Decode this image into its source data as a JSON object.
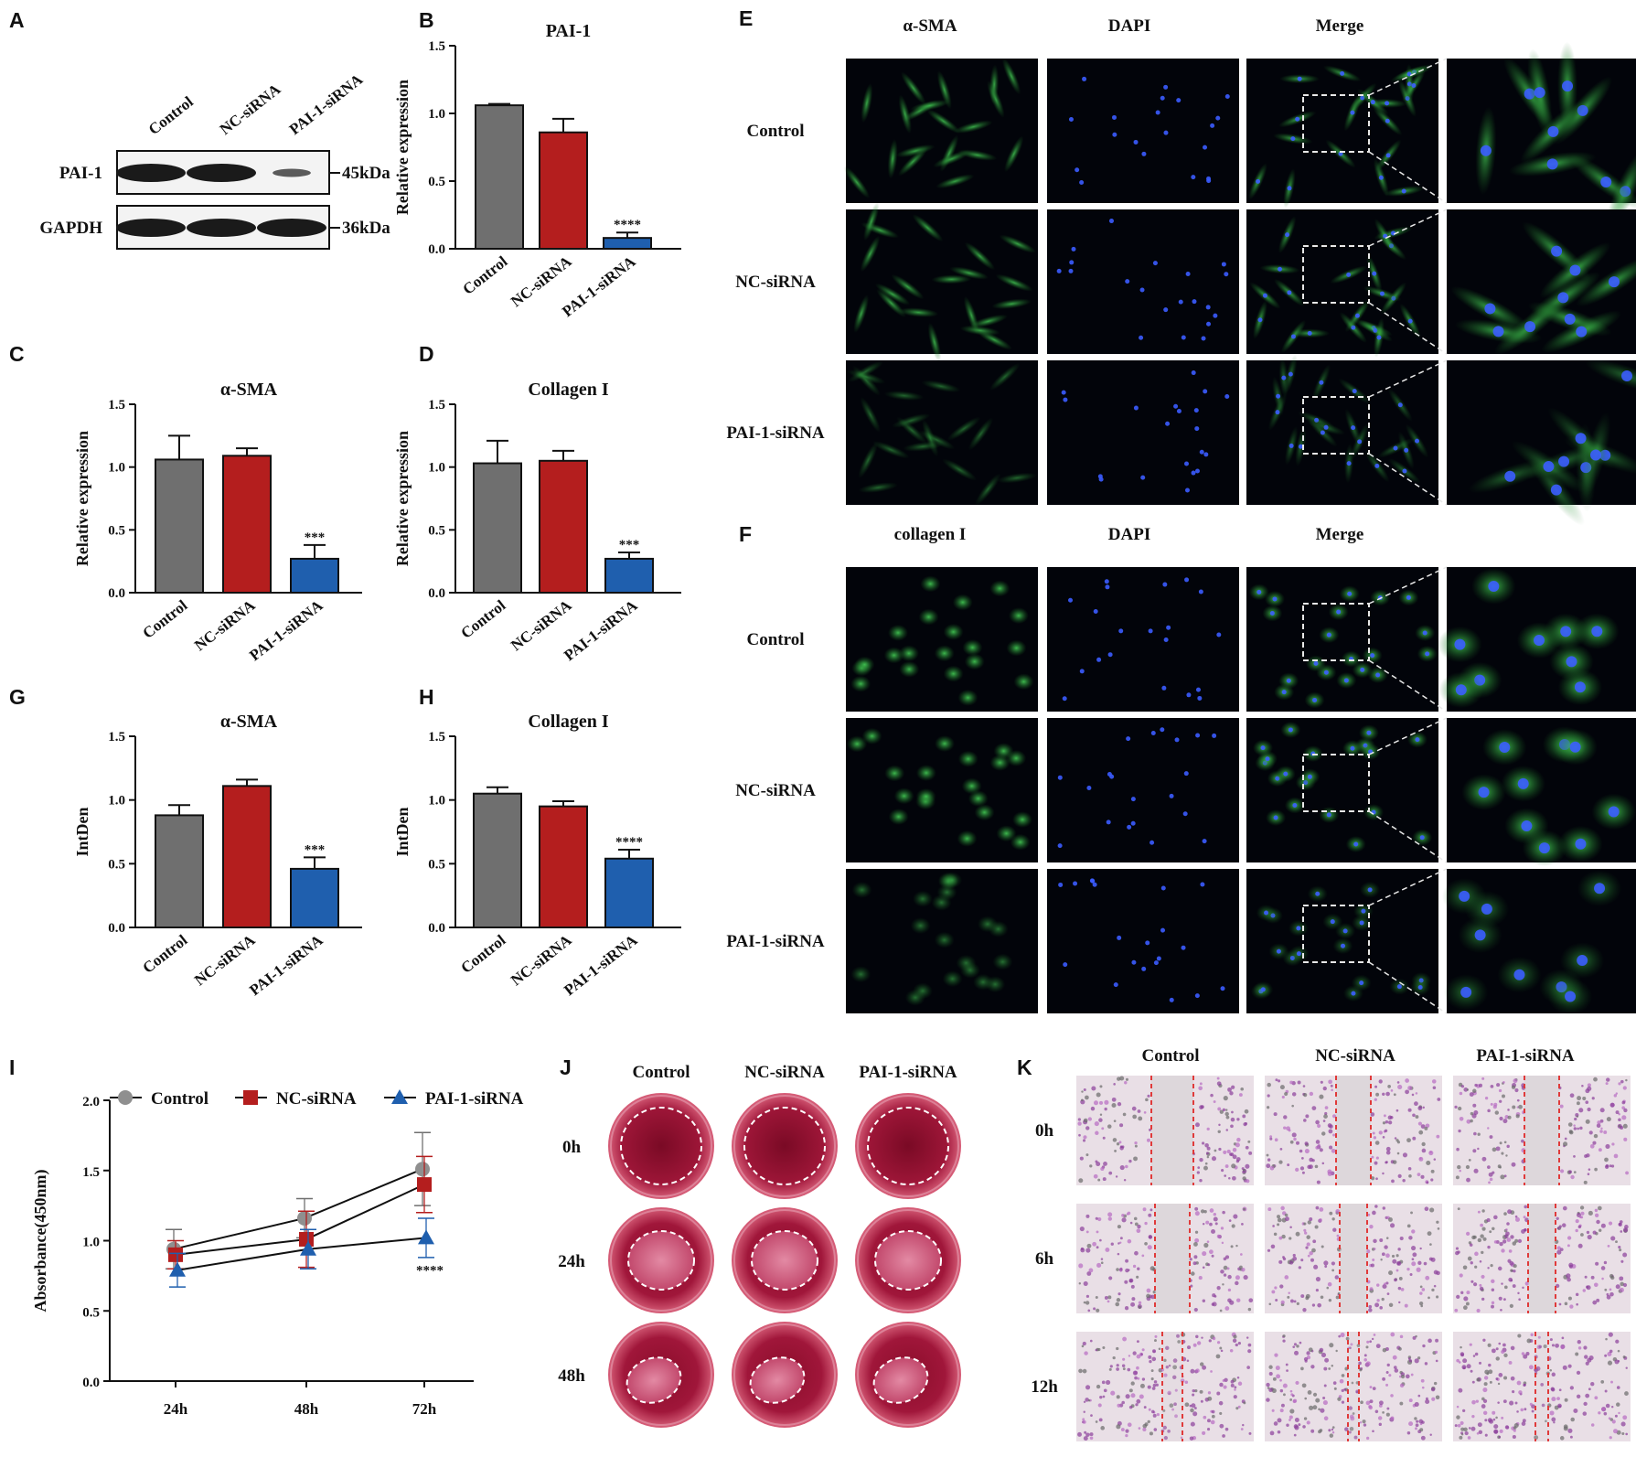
{
  "panel_letters": [
    "A",
    "B",
    "C",
    "D",
    "E",
    "F",
    "G",
    "H",
    "I",
    "J",
    "K"
  ],
  "colors": {
    "control": "#6f6f6f",
    "nc": "#b41e1e",
    "pai": "#1f5fae"
  },
  "blot": {
    "columns": [
      "Control",
      "NC-siRNA",
      "PAI-1-siRNA"
    ],
    "rows": [
      {
        "label": "PAI-1",
        "size": "45kDa",
        "intensity": [
          1.0,
          1.0,
          0.35
        ]
      },
      {
        "label": "GAPDH",
        "size": "36kDa",
        "intensity": [
          1.0,
          1.0,
          1.0
        ]
      }
    ]
  },
  "chart_data": [
    {
      "panel": "B",
      "type": "bar",
      "title": "PAI-1",
      "ylabel": "Relative expression",
      "categories": [
        "Control",
        "NC-siRNA",
        "PAI-1-siRNA"
      ],
      "values": [
        1.06,
        0.86,
        0.08
      ],
      "errors": [
        0.01,
        0.1,
        0.04
      ],
      "significance": [
        "",
        "",
        "****"
      ],
      "ylim": [
        0,
        1.5
      ],
      "yticks": [
        "0.0",
        "0.5",
        "1.0",
        "1.5"
      ]
    },
    {
      "panel": "C",
      "type": "bar",
      "title": "α-SMA",
      "ylabel": "Relative expression",
      "categories": [
        "Control",
        "NC-siRNA",
        "PAI-1-siRNA"
      ],
      "values": [
        1.06,
        1.09,
        0.27
      ],
      "errors": [
        0.19,
        0.06,
        0.11
      ],
      "significance": [
        "",
        "",
        "***"
      ],
      "ylim": [
        0,
        1.5
      ],
      "yticks": [
        "0.0",
        "0.5",
        "1.0",
        "1.5"
      ]
    },
    {
      "panel": "D",
      "type": "bar",
      "title": "Collagen I",
      "ylabel": "Relative expression",
      "categories": [
        "Control",
        "NC-siRNA",
        "PAI-1-siRNA"
      ],
      "values": [
        1.03,
        1.05,
        0.27
      ],
      "errors": [
        0.18,
        0.08,
        0.05
      ],
      "significance": [
        "",
        "",
        "***"
      ],
      "ylim": [
        0,
        1.5
      ],
      "yticks": [
        "0.0",
        "0.5",
        "1.0",
        "1.5"
      ]
    },
    {
      "panel": "G",
      "type": "bar",
      "title": "α-SMA",
      "ylabel": "IntDen",
      "categories": [
        "Control",
        "NC-siRNA",
        "PAI-1-siRNA"
      ],
      "values": [
        0.88,
        1.11,
        0.46
      ],
      "errors": [
        0.08,
        0.05,
        0.09
      ],
      "significance": [
        "",
        "",
        "***"
      ],
      "ylim": [
        0,
        1.5
      ],
      "yticks": [
        "0.0",
        "0.5",
        "1.0",
        "1.5"
      ]
    },
    {
      "panel": "H",
      "type": "bar",
      "title": "Collagen I",
      "ylabel": "IntDen",
      "categories": [
        "Control",
        "NC-siRNA",
        "PAI-1-siRNA"
      ],
      "values": [
        1.05,
        0.95,
        0.54
      ],
      "errors": [
        0.05,
        0.04,
        0.07
      ],
      "significance": [
        "",
        "",
        "****"
      ],
      "ylim": [
        0,
        1.5
      ],
      "yticks": [
        "0.0",
        "0.5",
        "1.0",
        "1.5"
      ]
    },
    {
      "panel": "I",
      "type": "line",
      "ylabel": "Absorbance(450nm)",
      "x": [
        "24h",
        "48h",
        "72h"
      ],
      "ylim": [
        0,
        2.0
      ],
      "yticks": [
        "0.0",
        "0.5",
        "1.0",
        "1.5",
        "2.0"
      ],
      "legend_placement": "top",
      "series": [
        {
          "name": "Control",
          "marker": "circle",
          "values": [
            0.94,
            1.16,
            1.51
          ],
          "errors": [
            0.14,
            0.14,
            0.26
          ]
        },
        {
          "name": "NC-siRNA",
          "marker": "square",
          "values": [
            0.9,
            1.01,
            1.4
          ],
          "errors": [
            0.1,
            0.2,
            0.2
          ]
        },
        {
          "name": "PAI-1-siRNA",
          "marker": "triangle",
          "values": [
            0.79,
            0.94,
            1.02
          ],
          "errors": [
            0.12,
            0.14,
            0.14
          ]
        }
      ],
      "significance": {
        "x": "72h",
        "text": "****"
      }
    }
  ],
  "if_e": {
    "headers": [
      "α-SMA",
      "DAPI",
      "Merge"
    ],
    "rows": [
      "Control",
      "NC-siRNA",
      "PAI-1-siRNA"
    ]
  },
  "if_f": {
    "headers": [
      "collagen I",
      "DAPI",
      "Merge"
    ],
    "rows": [
      "Control",
      "NC-siRNA",
      "PAI-1-siRNA"
    ]
  },
  "colony": {
    "columns": [
      "Control",
      "NC-siRNA",
      "PAI-1-siRNA"
    ],
    "rows": [
      "0h",
      "24h",
      "48h"
    ]
  },
  "wound": {
    "columns": [
      "Control",
      "NC-siRNA",
      "PAI-1-siRNA"
    ],
    "rows": [
      "0h",
      "6h",
      "12h"
    ]
  }
}
